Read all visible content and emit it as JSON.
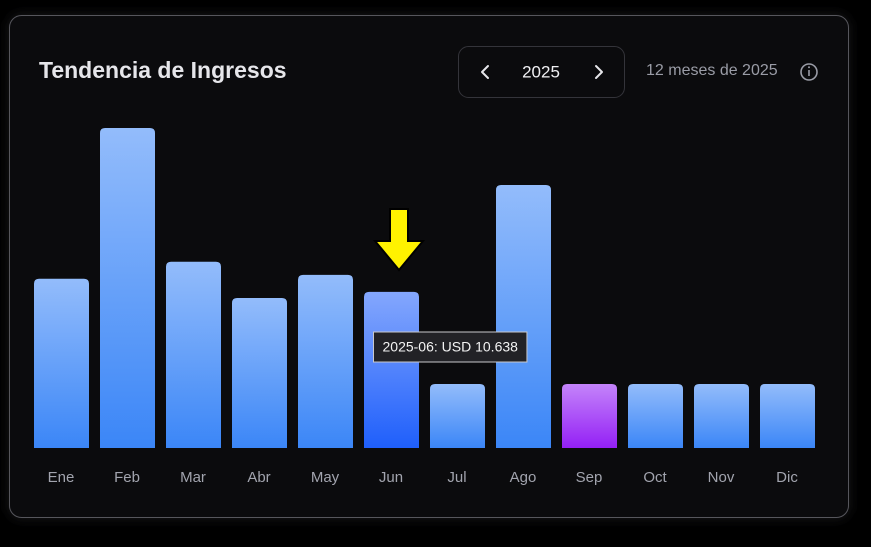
{
  "chart_data": {
    "type": "bar",
    "title": "Tendencia de Ingresos",
    "year": "2025",
    "subtitle": "12 meses de 2025",
    "categories": [
      "Ene",
      "Feb",
      "Mar",
      "Abr",
      "May",
      "Jun",
      "Jul",
      "Ago",
      "Sep",
      "Oct",
      "Nov",
      "Dic"
    ],
    "values": [
      11530,
      21800,
      12690,
      10220,
      11790,
      10638,
      4360,
      17920,
      4360,
      4360,
      4360,
      4360
    ],
    "value_labels": [
      null,
      null,
      null,
      null,
      null,
      "2025-06: USD 10.638",
      null,
      null,
      null,
      null,
      null,
      null
    ],
    "colors": [
      "#3b86f7",
      "#3b86f7",
      "#3b86f7",
      "#3b86f7",
      "#3b86f7",
      "#1f5ffb",
      "#3b86f7",
      "#3b86f7",
      "#9420f5",
      "#3b86f7",
      "#3b86f7",
      "#3b86f7"
    ],
    "grid": false
  }
}
